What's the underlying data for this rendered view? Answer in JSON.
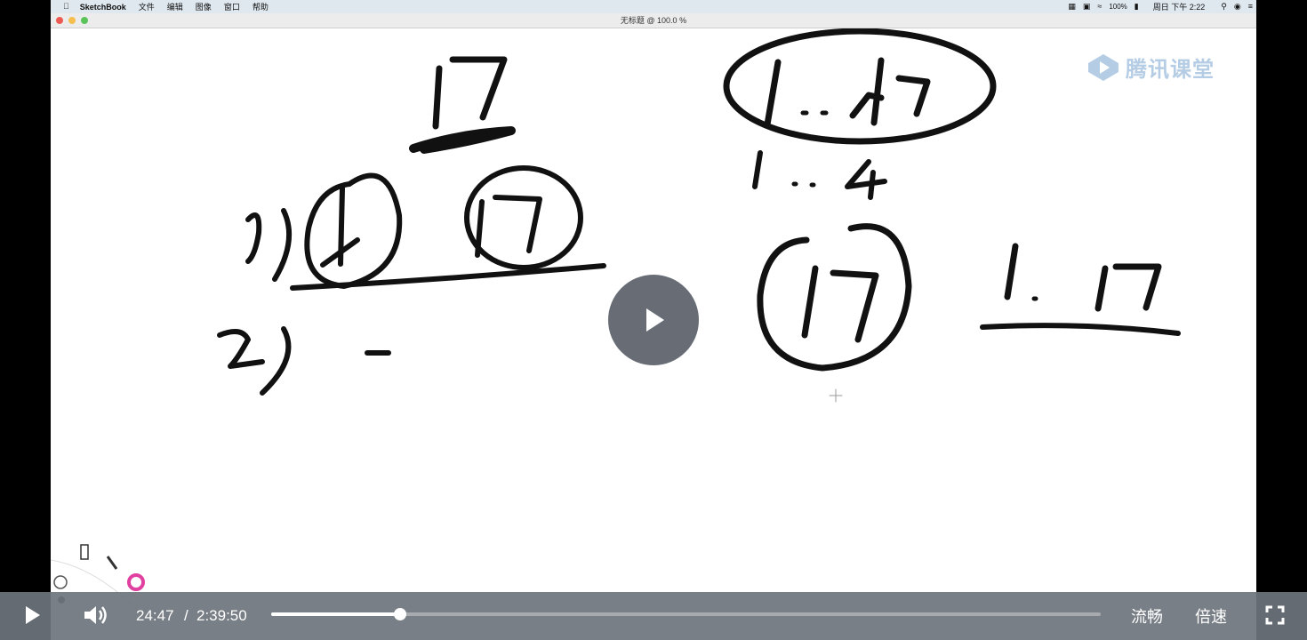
{
  "menubar": {
    "apple_icon": "apple-icon",
    "items": [
      "SketchBook",
      "文件",
      "编辑",
      "图像",
      "窗口",
      "帮助"
    ],
    "status": {
      "battery": "100%",
      "clock": "周日 下午 2:22"
    }
  },
  "window": {
    "title": "无标题 @ 100.0 %"
  },
  "watermark": {
    "text": "腾讯课堂",
    "brand_color": "#5c8fc7"
  },
  "player": {
    "current_time": "24:47",
    "separator": "/",
    "total_time": "2:39:50",
    "progress": 0.155,
    "quality_label": "流畅",
    "speed_label": "倍速"
  },
  "colors": {
    "control_bar": "#6e747c",
    "ink": "#111111"
  }
}
